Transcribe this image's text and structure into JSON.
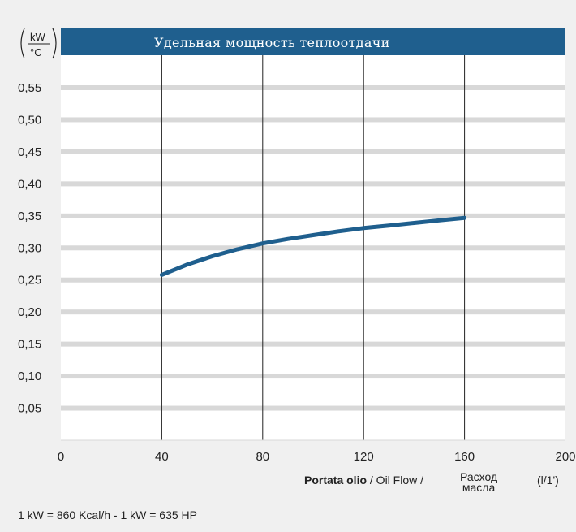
{
  "chart_data": {
    "type": "line",
    "title": "Удельная мощность теплоотдачи",
    "yunit_top": "kW",
    "yunit_bottom": "°C",
    "xlabel_bold": "Portata olio",
    "xlabel_rest": " / Oil Flow / ",
    "xlabel_ru_line1": "Расход",
    "xlabel_ru_line2": "масла",
    "xunit": "(l/1')",
    "xlim": [
      0,
      200
    ],
    "ylim": [
      0,
      0.6
    ],
    "x_ticks": [
      0,
      40,
      80,
      120,
      160,
      200
    ],
    "x_tick_labels": [
      "0",
      "40",
      "80",
      "120",
      "160",
      "200"
    ],
    "y_ticks": [
      0.05,
      0.1,
      0.15,
      0.2,
      0.25,
      0.3,
      0.35,
      0.4,
      0.45,
      0.5,
      0.55
    ],
    "y_tick_labels": [
      "0,05",
      "0,10",
      "0,15",
      "0,20",
      "0,25",
      "0,30",
      "0,35",
      "0,40",
      "0,45",
      "0,50",
      "0,55"
    ],
    "vertical_gridlines_at": [
      40,
      80,
      120,
      160
    ],
    "series": [
      {
        "x": [
          40,
          50,
          60,
          70,
          80,
          90,
          100,
          110,
          120,
          130,
          140,
          150,
          160
        ],
        "y": [
          0.258,
          0.274,
          0.287,
          0.298,
          0.307,
          0.314,
          0.32,
          0.326,
          0.331,
          0.335,
          0.339,
          0.343,
          0.347
        ],
        "color": "#1f5f8e"
      }
    ],
    "colors": {
      "title_bar": "#1f5f8e",
      "grid_band": "#d8d8d8",
      "plot_bg": "#ffffff"
    }
  },
  "footer": "1 kW = 860 Kcal/h  - 1 kW = 635 HP"
}
